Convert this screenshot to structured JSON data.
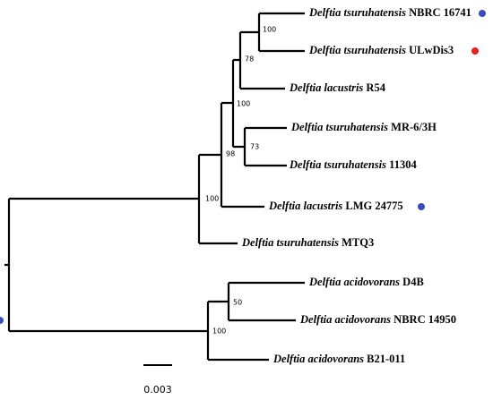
{
  "leaves": [
    {
      "taxon": "Delftia tsuruhatensis",
      "strain": "NBRC 16741",
      "marker": "#3b4cc0"
    },
    {
      "taxon": "Delftia tsuruhatensis",
      "strain": "ULwDis3",
      "marker": "#e8201c"
    },
    {
      "taxon": "Delftia lacustris",
      "strain": "R54"
    },
    {
      "taxon": "Delftia tsuruhatensis",
      "strain": "MR-6/3H"
    },
    {
      "taxon": "Delftia tsuruhatensis",
      "strain": "11304"
    },
    {
      "taxon": "Delftia lacustris",
      "strain": "LMG 24775",
      "marker": "#3b4cc0"
    },
    {
      "taxon": "Delftia tsuruhatensis",
      "strain": "MTQ3"
    },
    {
      "taxon": "Delftia acidovorans",
      "strain": "D4B"
    },
    {
      "taxon": "Delftia acidovorans",
      "strain": "NBRC 14950",
      "marker": "#3b4cc0"
    },
    {
      "taxon": "Delftia acidovorans",
      "strain": "B21-011"
    }
  ],
  "bootstrap": [
    "100",
    "78",
    "100",
    "73",
    "98",
    "100",
    "50",
    "100"
  ],
  "scale_bar": "0.003"
}
